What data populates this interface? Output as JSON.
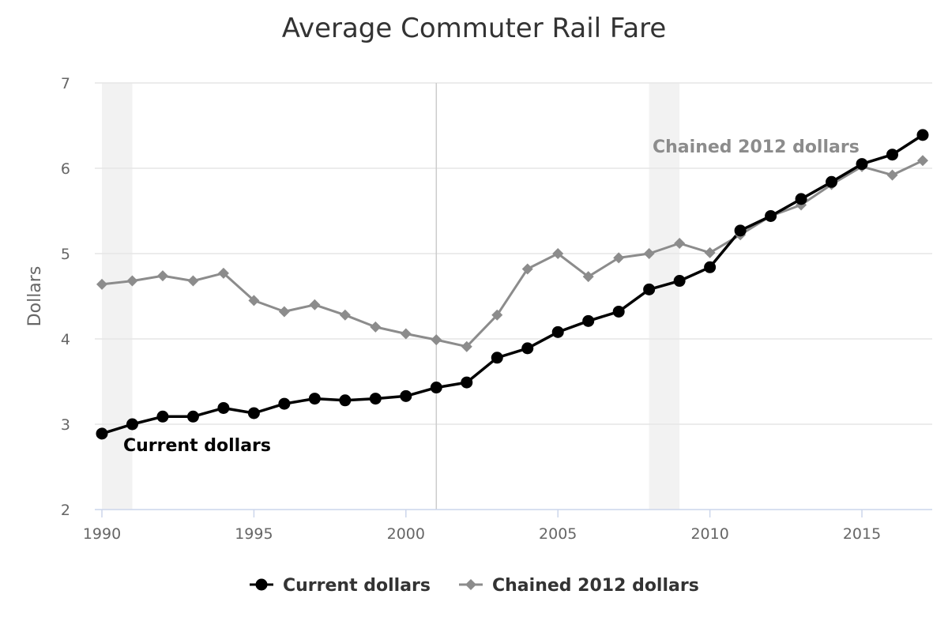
{
  "chart_data": {
    "type": "line",
    "title": "Average Commuter Rail Fare",
    "ylabel": "Dollars",
    "xlabel": "",
    "xlim": [
      1990,
      2017
    ],
    "ylim": [
      2,
      7
    ],
    "x_ticks": [
      1990,
      1995,
      2000,
      2005,
      2010,
      2015
    ],
    "y_ticks": [
      2,
      3,
      4,
      5,
      6,
      7
    ],
    "grid": "horizontal",
    "shaded_periods": [
      [
        1990,
        1991
      ],
      [
        2008,
        2009
      ]
    ],
    "crosshair_x": 2001,
    "legend_position": "bottom-center",
    "x": [
      1990,
      1991,
      1992,
      1993,
      1994,
      1995,
      1996,
      1997,
      1998,
      1999,
      2000,
      2001,
      2002,
      2003,
      2004,
      2005,
      2006,
      2007,
      2008,
      2009,
      2010,
      2011,
      2012,
      2013,
      2014,
      2015,
      2016,
      2017
    ],
    "series": [
      {
        "name": "Current dollars",
        "color": "#000000",
        "marker": "circle",
        "values": [
          2.89,
          3.0,
          3.09,
          3.09,
          3.19,
          3.13,
          3.24,
          3.3,
          3.28,
          3.3,
          3.33,
          3.43,
          3.49,
          3.78,
          3.89,
          4.08,
          4.21,
          4.32,
          4.58,
          4.68,
          4.84,
          5.27,
          5.44,
          5.64,
          5.84,
          6.05,
          6.16,
          6.39
        ]
      },
      {
        "name": "Chained 2012 dollars",
        "color": "#8c8c8c",
        "marker": "diamond",
        "values": [
          4.64,
          4.68,
          4.74,
          4.68,
          4.77,
          4.45,
          4.32,
          4.4,
          4.28,
          4.14,
          4.06,
          3.99,
          3.91,
          4.28,
          4.82,
          5.0,
          4.73,
          4.95,
          5.0,
          5.12,
          5.01,
          5.22,
          5.44,
          5.57,
          5.81,
          6.02,
          5.92,
          6.09
        ]
      }
    ],
    "annotations": [
      {
        "text": "Current dollars",
        "series": 0
      },
      {
        "text": "Chained 2012 dollars",
        "series": 1
      }
    ]
  }
}
